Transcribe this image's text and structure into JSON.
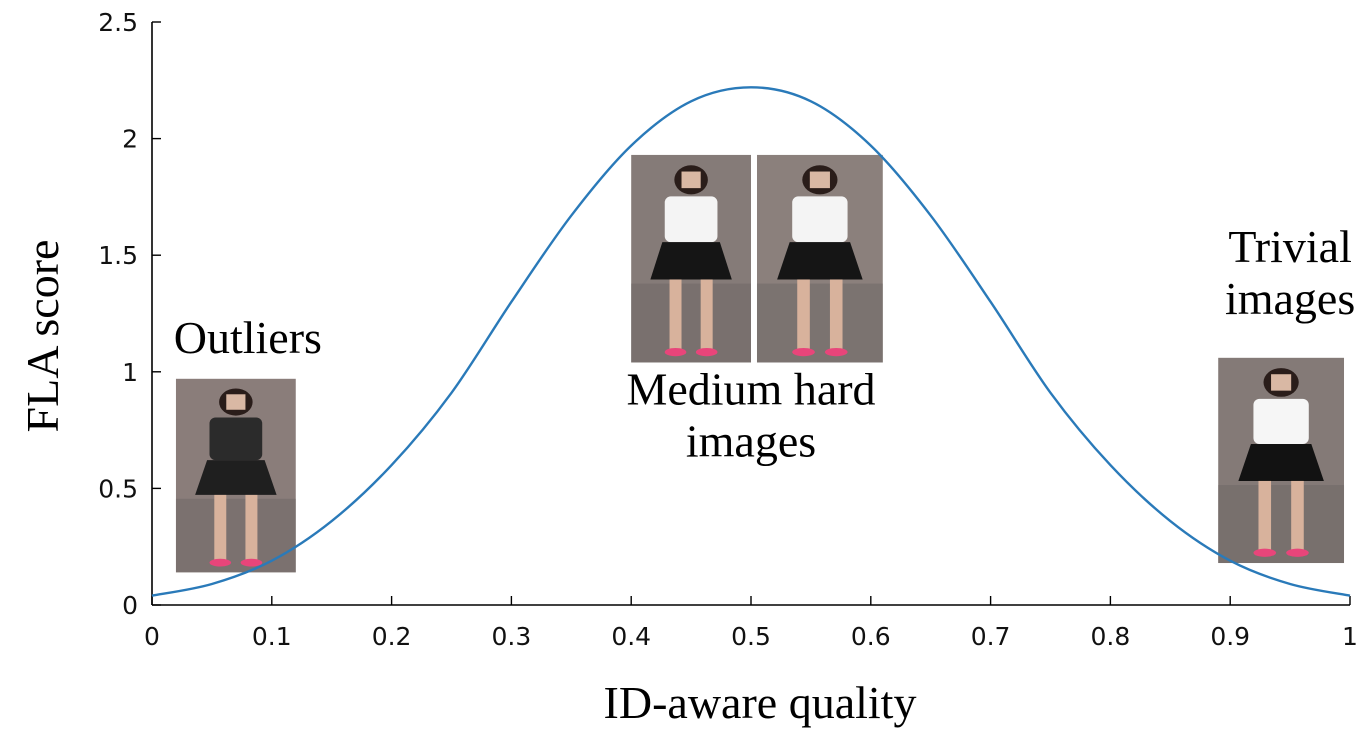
{
  "chart_data": {
    "type": "line",
    "xlabel": "ID-aware quality",
    "ylabel": "FLA score",
    "xlim": [
      0,
      1
    ],
    "ylim": [
      0,
      2.5
    ],
    "x_ticks": [
      0,
      0.1,
      0.2,
      0.3,
      0.4,
      0.5,
      0.6,
      0.7,
      0.8,
      0.9,
      1
    ],
    "x_tick_labels": [
      "0",
      "0.1",
      "0.2",
      "0.3",
      "0.4",
      "0.5",
      "0.6",
      "0.7",
      "0.8",
      "0.9",
      "1"
    ],
    "y_ticks": [
      0,
      0.5,
      1,
      1.5,
      2,
      2.5
    ],
    "y_tick_labels": [
      "0",
      "0.5",
      "1",
      "1.5",
      "2",
      "2.5"
    ],
    "grid": false,
    "series": [
      {
        "color": "#2a7ab9",
        "x": [
          0,
          0.05,
          0.1,
          0.15,
          0.2,
          0.25,
          0.3,
          0.35,
          0.4,
          0.45,
          0.5,
          0.55,
          0.6,
          0.65,
          0.7,
          0.75,
          0.8,
          0.85,
          0.9,
          0.95,
          1
        ],
        "y": [
          0.04,
          0.09,
          0.19,
          0.36,
          0.6,
          0.91,
          1.3,
          1.67,
          1.97,
          2.16,
          2.22,
          2.16,
          1.97,
          1.67,
          1.3,
          0.91,
          0.6,
          0.36,
          0.19,
          0.09,
          0.04
        ]
      }
    ],
    "annotations": [
      {
        "lines": [
          "Outliers"
        ],
        "x": 0.08,
        "y": 1.08
      },
      {
        "lines": [
          "Medium hard",
          "images"
        ],
        "x": 0.5,
        "y": 0.86
      },
      {
        "lines": [
          "Trivial",
          "images"
        ],
        "x": 0.95,
        "y": 1.47
      }
    ],
    "thumbnails": [
      {
        "name": "outlier-thumbnail",
        "x_range": [
          0.02,
          0.12
        ],
        "y_range": [
          0.14,
          0.97
        ],
        "shirt": "#2b2b2b",
        "skirt": "#1f1f1f",
        "bg": "#8a7d7a"
      },
      {
        "name": "medium-hard-thumbnail-left",
        "x_range": [
          0.4,
          0.5
        ],
        "y_range": [
          1.04,
          1.93
        ],
        "shirt": "#f4f4f4",
        "skirt": "#151515",
        "bg": "#857b78"
      },
      {
        "name": "medium-hard-thumbnail-right",
        "x_range": [
          0.505,
          0.61
        ],
        "y_range": [
          1.04,
          1.93
        ],
        "shirt": "#f4f4f4",
        "skirt": "#151515",
        "bg": "#8b807c"
      },
      {
        "name": "trivial-thumbnail",
        "x_range": [
          0.89,
          0.995
        ],
        "y_range": [
          0.18,
          1.06
        ],
        "shirt": "#f6f6f6",
        "skirt": "#121212",
        "bg": "#847a77"
      }
    ]
  }
}
